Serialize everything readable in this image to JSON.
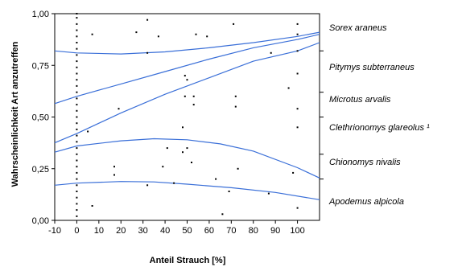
{
  "chart_data": {
    "type": "scatter",
    "xlabel": "Anteil Strauch [%]",
    "ylabel": "Wahrscheinlichkeit Art anzutreffen",
    "xlim": [
      -10,
      110
    ],
    "ylim": [
      0,
      1
    ],
    "x_ticks": [
      "-10",
      "0",
      "10",
      "20",
      "30",
      "40",
      "50",
      "60",
      "70",
      "80",
      "90",
      "100"
    ],
    "y_ticks": [
      "0,00",
      "0,25",
      "0,50",
      "0,75",
      "1,00"
    ],
    "grid": false,
    "line_color": "#3a6fd8",
    "point_color": "#000000",
    "points": [
      [
        0,
        0.02
      ],
      [
        0,
        0.05
      ],
      [
        0,
        0.08
      ],
      [
        0,
        0.11
      ],
      [
        0,
        0.14
      ],
      [
        0,
        0.17
      ],
      [
        0,
        0.2
      ],
      [
        0,
        0.23
      ],
      [
        0,
        0.26
      ],
      [
        0,
        0.29
      ],
      [
        0,
        0.32
      ],
      [
        0,
        0.35
      ],
      [
        0,
        0.38
      ],
      [
        0,
        0.41
      ],
      [
        0,
        0.44
      ],
      [
        0,
        0.47
      ],
      [
        0,
        0.5
      ],
      [
        0,
        0.53
      ],
      [
        0,
        0.56
      ],
      [
        0,
        0.59
      ],
      [
        0,
        0.62
      ],
      [
        0,
        0.65
      ],
      [
        0,
        0.68
      ],
      [
        0,
        0.71
      ],
      [
        0,
        0.74
      ],
      [
        0,
        0.77
      ],
      [
        0,
        0.8
      ],
      [
        0,
        0.83
      ],
      [
        0,
        0.86
      ],
      [
        0,
        0.89
      ],
      [
        0,
        0.92
      ],
      [
        0,
        0.95
      ],
      [
        0,
        0.98
      ],
      [
        0,
        1.0
      ],
      [
        5,
        0.43
      ],
      [
        7,
        0.07
      ],
      [
        7,
        0.9
      ],
      [
        17,
        0.26
      ],
      [
        17,
        0.22
      ],
      [
        19,
        0.54
      ],
      [
        27,
        0.91
      ],
      [
        32,
        0.97
      ],
      [
        32,
        0.81
      ],
      [
        32,
        0.17
      ],
      [
        37,
        0.89
      ],
      [
        39,
        0.26
      ],
      [
        41,
        0.35
      ],
      [
        44,
        0.18
      ],
      [
        48,
        0.45
      ],
      [
        48,
        0.33
      ],
      [
        49,
        0.7
      ],
      [
        49,
        0.6
      ],
      [
        50,
        0.35
      ],
      [
        50,
        0.68
      ],
      [
        52,
        0.28
      ],
      [
        53,
        0.6
      ],
      [
        53,
        0.56
      ],
      [
        54,
        0.9
      ],
      [
        59,
        0.89
      ],
      [
        63,
        0.2
      ],
      [
        66,
        0.03
      ],
      [
        69,
        0.14
      ],
      [
        71,
        0.95
      ],
      [
        72,
        0.6
      ],
      [
        72,
        0.55
      ],
      [
        73,
        0.25
      ],
      [
        87,
        0.13
      ],
      [
        88,
        0.81
      ],
      [
        96,
        0.64
      ],
      [
        98,
        0.23
      ],
      [
        100,
        0.95
      ],
      [
        100,
        0.9
      ],
      [
        100,
        0.82
      ],
      [
        100,
        0.71
      ],
      [
        100,
        0.54
      ],
      [
        100,
        0.45
      ],
      [
        100,
        0.06
      ]
    ],
    "series": [
      {
        "name": "Sorex araneus",
        "x": [
          -10,
          0,
          20,
          40,
          60,
          80,
          100,
          110
        ],
        "y": [
          0.82,
          0.81,
          0.805,
          0.815,
          0.835,
          0.86,
          0.89,
          0.91
        ]
      },
      {
        "name": "Pitymys subterraneus",
        "x": [
          -10,
          0,
          20,
          40,
          60,
          80,
          100,
          110
        ],
        "y": [
          0.565,
          0.6,
          0.66,
          0.72,
          0.78,
          0.835,
          0.875,
          0.9
        ]
      },
      {
        "name": "Microtus arvalis",
        "x": [
          -10,
          0,
          20,
          40,
          60,
          80,
          100,
          110
        ],
        "y": [
          0.375,
          0.42,
          0.52,
          0.61,
          0.69,
          0.77,
          0.82,
          0.86
        ]
      },
      {
        "name": "Clethrionomys glareolus ¹",
        "x": [
          -10,
          0,
          20,
          35,
          50,
          65,
          80,
          100,
          110
        ],
        "y": [
          0.33,
          0.36,
          0.385,
          0.395,
          0.39,
          0.37,
          0.335,
          0.255,
          0.205
        ]
      },
      {
        "name": "Chionomys nivalis",
        "x": [
          -10,
          0,
          20,
          35,
          50,
          65,
          80,
          100,
          110
        ],
        "y": [
          0.33,
          0.36,
          0.385,
          0.395,
          0.39,
          0.37,
          0.335,
          0.255,
          0.205
        ]
      },
      {
        "name": "Apodemus alpicola",
        "x": [
          -10,
          0,
          20,
          35,
          50,
          70,
          90,
          110
        ],
        "y": [
          0.17,
          0.18,
          0.188,
          0.186,
          0.175,
          0.158,
          0.135,
          0.1
        ]
      }
    ],
    "curves": [
      {
        "name": "Sorex araneus",
        "x": [
          -10,
          0,
          20,
          40,
          60,
          80,
          100,
          110
        ],
        "y": [
          0.82,
          0.81,
          0.805,
          0.815,
          0.835,
          0.86,
          0.89,
          0.91
        ]
      },
      {
        "name": "Pitymys subterraneus",
        "x": [
          -10,
          0,
          20,
          40,
          60,
          80,
          100,
          110
        ],
        "y": [
          0.565,
          0.6,
          0.66,
          0.72,
          0.78,
          0.835,
          0.875,
          0.9
        ]
      },
      {
        "name": "Microtus arvalis",
        "x": [
          -10,
          0,
          20,
          40,
          60,
          80,
          100,
          110
        ],
        "y": [
          0.375,
          0.42,
          0.52,
          0.61,
          0.69,
          0.77,
          0.82,
          0.86
        ]
      },
      {
        "name": "Clethrionomys glareolus / Chionomys nivalis",
        "x": [
          -10,
          0,
          20,
          35,
          50,
          65,
          80,
          100,
          110
        ],
        "y": [
          0.33,
          0.36,
          0.385,
          0.395,
          0.39,
          0.37,
          0.335,
          0.255,
          0.205
        ]
      },
      {
        "name": "Apodemus alpicola",
        "x": [
          -10,
          0,
          20,
          35,
          50,
          70,
          90,
          110
        ],
        "y": [
          0.17,
          0.18,
          0.188,
          0.186,
          0.175,
          0.158,
          0.135,
          0.1
        ]
      }
    ],
    "legend": {
      "placement": "right",
      "labels": [
        "Sorex araneus",
        "Pitymys subterraneus",
        "Microtus arvalis",
        "Clethrionomys glareolus ¹",
        "Chionomys nivalis",
        "Apodemus alpicola"
      ],
      "boundaries": [
        0.82,
        0.62,
        0.5,
        0.32,
        0.2
      ]
    }
  }
}
